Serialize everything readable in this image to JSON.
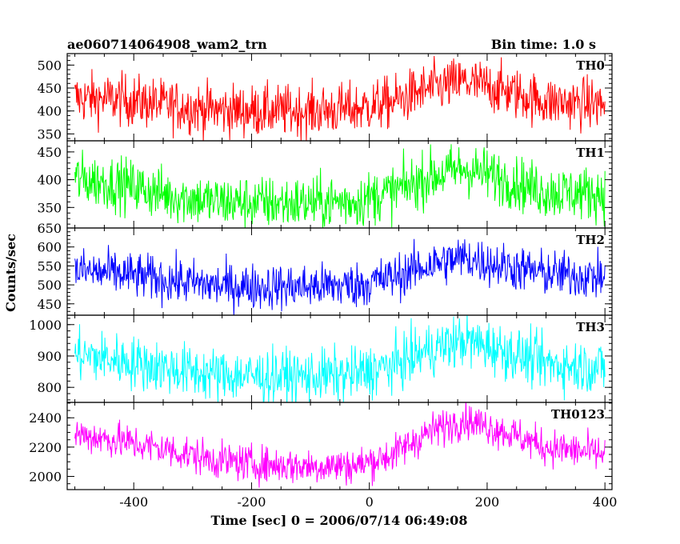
{
  "header": {
    "title": "ae060714064908_wam2_trn",
    "bin_time": "Bin time: 1.0 s"
  },
  "chart_data": {
    "type": "line",
    "xlabel": "Time [sec] 0 = 2006/07/14 06:49:08",
    "ylabel": "Counts/sec",
    "xlim": [
      -513,
      412
    ],
    "x_ticks": [
      "-400",
      "-200",
      "0",
      "200",
      "400"
    ],
    "x_tick_values": [
      -400,
      -200,
      0,
      200,
      400
    ],
    "x_minor_step": 50,
    "data_x_range": [
      -500,
      400
    ],
    "grid": false,
    "panels": [
      {
        "name": "TH0",
        "color": "#ff0000",
        "ylim": [
          335,
          525
        ],
        "y_ticks": [
          350,
          400,
          450,
          500
        ],
        "y_minor_step": 10,
        "noise": 28,
        "trend": [
          [
            -500,
            428
          ],
          [
            -420,
            425
          ],
          [
            -340,
            412
          ],
          [
            -260,
            402
          ],
          [
            -180,
            400
          ],
          [
            -100,
            400
          ],
          [
            -20,
            405
          ],
          [
            40,
            420
          ],
          [
            100,
            448
          ],
          [
            160,
            463
          ],
          [
            220,
            448
          ],
          [
            300,
            420
          ],
          [
            400,
            414
          ]
        ]
      },
      {
        "name": "TH1",
        "color": "#00ff00",
        "ylim": [
          313,
          470
        ],
        "y_ticks": [
          350,
          400,
          450
        ],
        "y_minor_step": 10,
        "noise": 24,
        "trend": [
          [
            -500,
            402
          ],
          [
            -420,
            392
          ],
          [
            -340,
            372
          ],
          [
            -260,
            360
          ],
          [
            -180,
            358
          ],
          [
            -100,
            358
          ],
          [
            -20,
            362
          ],
          [
            40,
            378
          ],
          [
            100,
            404
          ],
          [
            160,
            420
          ],
          [
            220,
            404
          ],
          [
            300,
            378
          ],
          [
            400,
            375
          ]
        ]
      },
      {
        "name": "TH2",
        "color": "#0000ff",
        "ylim": [
          420,
          650
        ],
        "y_ticks": [
          450,
          500,
          550,
          600,
          650
        ],
        "y_minor_step": 10,
        "noise": 30,
        "trend": [
          [
            -500,
            538
          ],
          [
            -420,
            528
          ],
          [
            -340,
            512
          ],
          [
            -260,
            498
          ],
          [
            -180,
            495
          ],
          [
            -100,
            495
          ],
          [
            -20,
            500
          ],
          [
            40,
            520
          ],
          [
            100,
            552
          ],
          [
            160,
            572
          ],
          [
            220,
            552
          ],
          [
            300,
            530
          ],
          [
            400,
            520
          ]
        ]
      },
      {
        "name": "TH3",
        "color": "#00ffff",
        "ylim": [
          752,
          1030
        ],
        "y_ticks": [
          800,
          900,
          1000
        ],
        "y_minor_step": 20,
        "noise": 42,
        "trend": [
          [
            -500,
            905
          ],
          [
            -420,
            885
          ],
          [
            -340,
            860
          ],
          [
            -260,
            840
          ],
          [
            -180,
            835
          ],
          [
            -100,
            835
          ],
          [
            -20,
            842
          ],
          [
            40,
            870
          ],
          [
            100,
            918
          ],
          [
            160,
            950
          ],
          [
            220,
            922
          ],
          [
            300,
            875
          ],
          [
            400,
            862
          ]
        ]
      },
      {
        "name": "TH0123",
        "color": "#ff00ff",
        "ylim": [
          1910,
          2505
        ],
        "y_ticks": [
          2000,
          2200,
          2400
        ],
        "y_minor_step": 50,
        "noise": 62,
        "trend": [
          [
            -500,
            2290
          ],
          [
            -420,
            2240
          ],
          [
            -340,
            2180
          ],
          [
            -260,
            2110
          ],
          [
            -180,
            2080
          ],
          [
            -100,
            2070
          ],
          [
            -20,
            2075
          ],
          [
            40,
            2150
          ],
          [
            100,
            2300
          ],
          [
            160,
            2390
          ],
          [
            220,
            2320
          ],
          [
            300,
            2200
          ],
          [
            400,
            2150
          ]
        ]
      }
    ]
  }
}
